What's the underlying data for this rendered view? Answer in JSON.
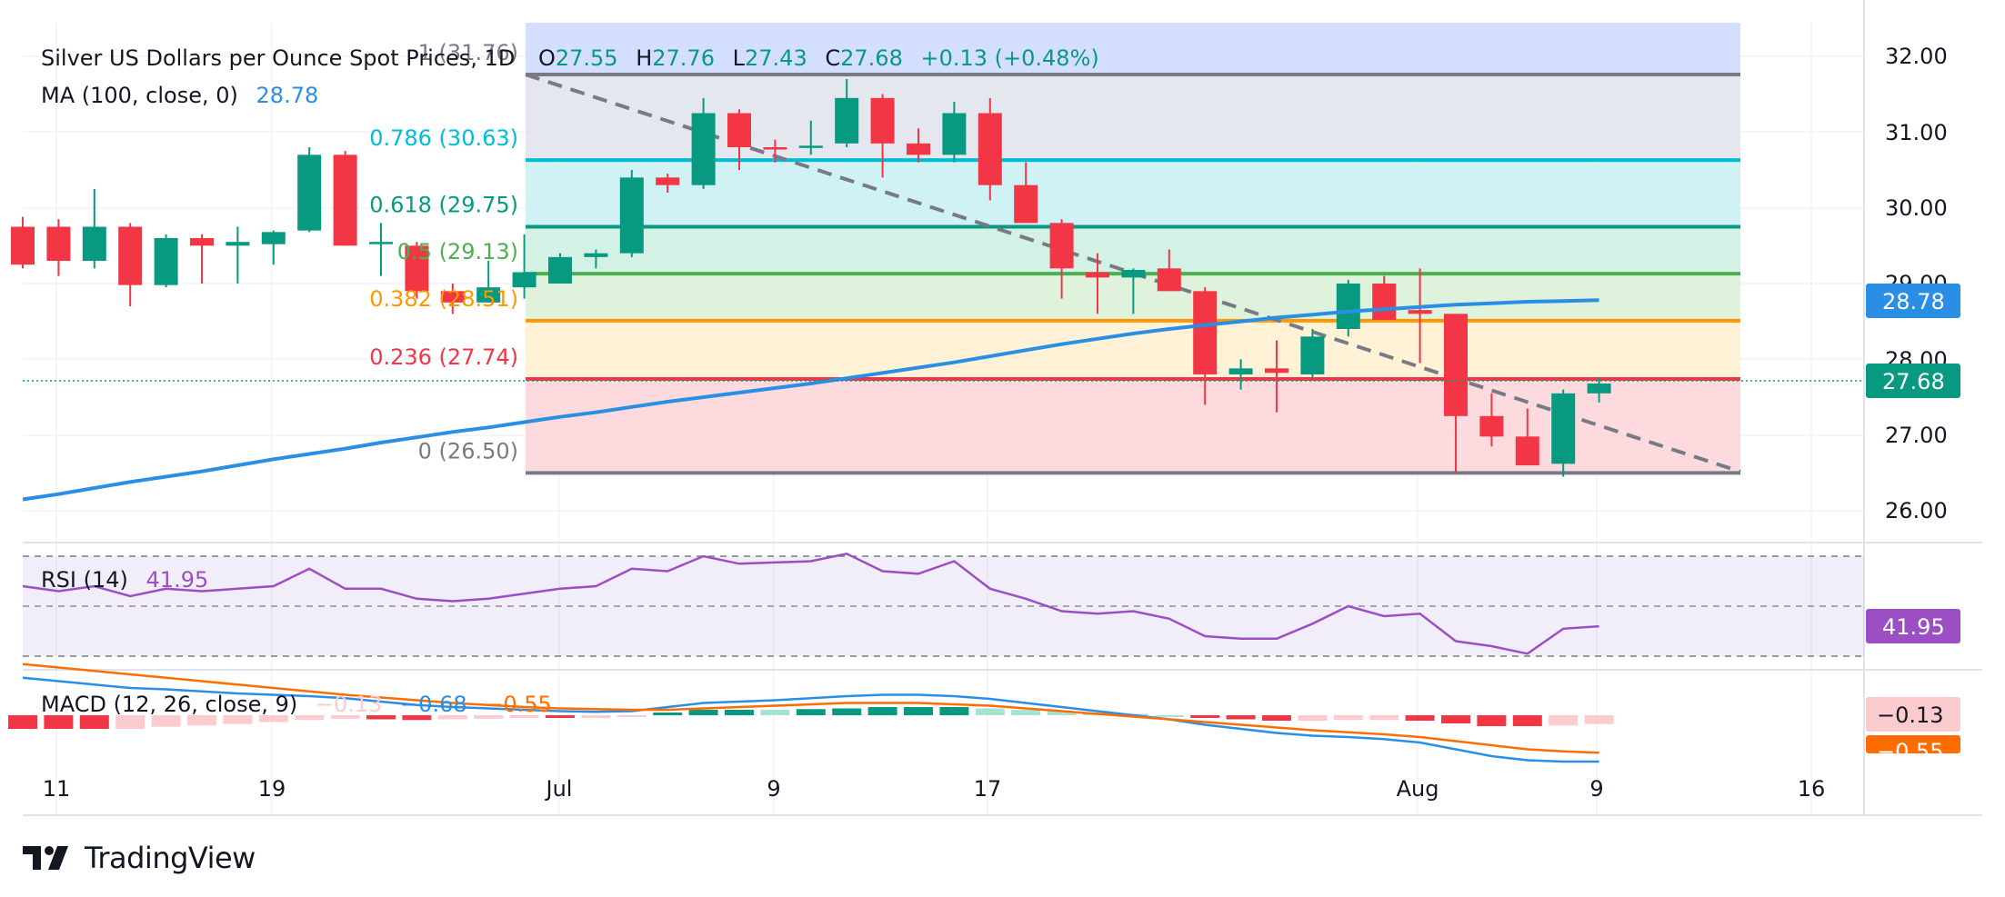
{
  "header": {
    "symbol": "Silver US Dollars per Ounce Spot Prices",
    "timeframe": "1D",
    "open_label": "O",
    "open": "27.55",
    "high_label": "H",
    "high": "27.76",
    "low_label": "L",
    "low": "27.43",
    "close_label": "C",
    "close": "27.68",
    "change": "+0.13 (+0.48%)",
    "ma_label": "MA (100, close, 0)",
    "ma_value": "28.78"
  },
  "fib_labels": [
    {
      "level": 1,
      "text": "1 (31.76)",
      "price": 31.76,
      "color": "#787b86"
    },
    {
      "level": 0.786,
      "text": "0.786 (30.63)",
      "price": 30.63,
      "color": "#00bcd4"
    },
    {
      "level": 0.618,
      "text": "0.618 (29.75)",
      "price": 29.75,
      "color": "#089981"
    },
    {
      "level": 0.5,
      "text": "0.5 (29.13)",
      "price": 29.13,
      "color": "#4caf50"
    },
    {
      "level": 0.382,
      "text": "0.382 (28.51)",
      "price": 28.51,
      "color": "#ff9800"
    },
    {
      "level": 0.236,
      "text": "0.236 (27.74)",
      "price": 27.74,
      "color": "#f23645"
    },
    {
      "level": 0,
      "text": "0 (26.50)",
      "price": 26.5,
      "color": "#787b86"
    }
  ],
  "price_axis": {
    "ticks": [
      "32.00",
      "31.00",
      "30.00",
      "29.00",
      "28.00",
      "27.00",
      "26.00"
    ],
    "ma_badge": "28.78",
    "price_badge": "27.68"
  },
  "time_axis": [
    "11",
    "19",
    "Jul",
    "9",
    "17",
    "Aug",
    "9",
    "16"
  ],
  "rsi": {
    "label": "RSI (14)",
    "value": "41.95",
    "badge": "41.95"
  },
  "macd": {
    "label": "MACD (12, 26, close, 9)",
    "hist_value": "−0.13",
    "macd_value": "−0.68",
    "signal_value": "−0.55",
    "hist_badge": "−0.13",
    "signal_badge": "−0.55"
  },
  "branding": {
    "name": "TradingView",
    "logo_icon": "tradingview-logo-icon"
  },
  "colors": {
    "up": "#089981",
    "down": "#f23645",
    "ma": "#2a8fe4",
    "rsi": "#9c4fc2",
    "macd": "#2a8fe4",
    "signal": "#ff6d00"
  },
  "chart_data": {
    "type": "candlestick",
    "title": "Silver US Dollars per Ounce Spot Prices, 1D",
    "ylim": [
      25.6,
      32.35
    ],
    "candles": [
      {
        "o": 29.75,
        "h": 29.88,
        "l": 29.2,
        "c": 29.25
      },
      {
        "o": 29.75,
        "h": 29.85,
        "l": 29.1,
        "c": 29.3
      },
      {
        "o": 29.3,
        "h": 30.25,
        "l": 29.2,
        "c": 29.75
      },
      {
        "o": 29.75,
        "h": 29.8,
        "l": 28.7,
        "c": 28.98
      },
      {
        "o": 28.98,
        "h": 29.65,
        "l": 28.95,
        "c": 29.6
      },
      {
        "o": 29.6,
        "h": 29.65,
        "l": 29.0,
        "c": 29.5
      },
      {
        "o": 29.5,
        "h": 29.75,
        "l": 29.0,
        "c": 29.55
      },
      {
        "o": 29.52,
        "h": 29.7,
        "l": 29.25,
        "c": 29.68
      },
      {
        "o": 29.7,
        "h": 30.8,
        "l": 29.68,
        "c": 30.7
      },
      {
        "o": 30.7,
        "h": 30.75,
        "l": 29.5,
        "c": 29.5
      },
      {
        "o": 29.55,
        "h": 29.8,
        "l": 29.1,
        "c": 29.55
      },
      {
        "o": 29.5,
        "h": 29.55,
        "l": 28.8,
        "c": 28.9
      },
      {
        "o": 28.9,
        "h": 29.0,
        "l": 28.6,
        "c": 28.75
      },
      {
        "o": 28.75,
        "h": 29.3,
        "l": 28.75,
        "c": 28.95
      },
      {
        "o": 28.95,
        "h": 29.65,
        "l": 28.8,
        "c": 29.15
      },
      {
        "o": 29.0,
        "h": 29.4,
        "l": 29.0,
        "c": 29.35
      },
      {
        "o": 29.35,
        "h": 29.45,
        "l": 29.2,
        "c": 29.4
      },
      {
        "o": 29.4,
        "h": 30.5,
        "l": 29.35,
        "c": 30.4
      },
      {
        "o": 30.4,
        "h": 30.45,
        "l": 30.2,
        "c": 30.3
      },
      {
        "o": 30.3,
        "h": 31.45,
        "l": 30.25,
        "c": 31.25
      },
      {
        "o": 31.25,
        "h": 31.3,
        "l": 30.5,
        "c": 30.8
      },
      {
        "o": 30.8,
        "h": 30.9,
        "l": 30.6,
        "c": 30.78
      },
      {
        "o": 30.8,
        "h": 31.15,
        "l": 30.7,
        "c": 30.82
      },
      {
        "o": 30.85,
        "h": 31.7,
        "l": 30.8,
        "c": 31.45
      },
      {
        "o": 31.45,
        "h": 31.5,
        "l": 30.4,
        "c": 30.85
      },
      {
        "o": 30.85,
        "h": 31.05,
        "l": 30.6,
        "c": 30.7
      },
      {
        "o": 30.7,
        "h": 31.4,
        "l": 30.6,
        "c": 31.25
      },
      {
        "o": 31.25,
        "h": 31.45,
        "l": 30.1,
        "c": 30.3
      },
      {
        "o": 30.3,
        "h": 30.6,
        "l": 29.8,
        "c": 29.8
      },
      {
        "o": 29.8,
        "h": 29.85,
        "l": 28.8,
        "c": 29.2
      },
      {
        "o": 29.15,
        "h": 29.4,
        "l": 28.6,
        "c": 29.08
      },
      {
        "o": 29.08,
        "h": 29.2,
        "l": 28.6,
        "c": 29.18
      },
      {
        "o": 29.2,
        "h": 29.45,
        "l": 28.9,
        "c": 28.9
      },
      {
        "o": 28.9,
        "h": 28.95,
        "l": 27.4,
        "c": 27.8
      },
      {
        "o": 27.8,
        "h": 28.0,
        "l": 27.6,
        "c": 27.88
      },
      {
        "o": 27.88,
        "h": 28.25,
        "l": 27.3,
        "c": 27.82
      },
      {
        "o": 27.8,
        "h": 28.4,
        "l": 27.75,
        "c": 28.3
      },
      {
        "o": 28.4,
        "h": 29.05,
        "l": 28.3,
        "c": 29.0
      },
      {
        "o": 29.0,
        "h": 29.1,
        "l": 28.55,
        "c": 28.52
      },
      {
        "o": 28.65,
        "h": 29.2,
        "l": 27.95,
        "c": 28.6
      },
      {
        "o": 28.6,
        "h": 28.6,
        "l": 26.5,
        "c": 27.25
      },
      {
        "o": 27.25,
        "h": 27.55,
        "l": 26.85,
        "c": 26.98
      },
      {
        "o": 26.98,
        "h": 27.35,
        "l": 26.6,
        "c": 26.6
      },
      {
        "o": 26.62,
        "h": 27.6,
        "l": 26.45,
        "c": 27.55
      },
      {
        "o": 27.55,
        "h": 27.76,
        "l": 27.43,
        "c": 27.68
      }
    ],
    "ma100": [
      26.15,
      26.22,
      26.3,
      26.38,
      26.45,
      26.52,
      26.6,
      26.68,
      26.75,
      26.82,
      26.9,
      26.97,
      27.04,
      27.1,
      27.17,
      27.24,
      27.3,
      27.37,
      27.44,
      27.5,
      27.56,
      27.62,
      27.68,
      27.75,
      27.82,
      27.89,
      27.96,
      28.04,
      28.12,
      28.2,
      28.27,
      28.34,
      28.4,
      28.45,
      28.5,
      28.55,
      28.59,
      28.63,
      28.66,
      28.69,
      28.72,
      28.74,
      28.76,
      28.77,
      28.78
    ],
    "rsi": [
      58,
      56,
      58,
      54,
      57,
      56,
      57,
      58,
      65,
      57,
      57,
      53,
      52,
      53,
      55,
      57,
      58,
      65,
      64,
      70,
      67,
      67.5,
      68,
      71,
      64,
      63,
      68,
      57,
      53,
      48,
      47,
      48,
      45,
      38,
      37,
      37,
      43,
      50,
      46,
      47,
      36,
      34,
      31,
      41,
      41.95
    ],
    "rsi_ylim": [
      20,
      80
    ],
    "macd_line": [
      0.55,
      0.5,
      0.45,
      0.4,
      0.38,
      0.35,
      0.32,
      0.3,
      0.28,
      0.25,
      0.2,
      0.15,
      0.12,
      0.1,
      0.08,
      0.06,
      0.05,
      0.06,
      0.12,
      0.18,
      0.2,
      0.22,
      0.25,
      0.28,
      0.3,
      0.3,
      0.28,
      0.24,
      0.18,
      0.12,
      0.06,
      0.0,
      -0.06,
      -0.14,
      -0.2,
      -0.26,
      -0.3,
      -0.32,
      -0.35,
      -0.4,
      -0.5,
      -0.6,
      -0.66,
      -0.68,
      -0.68
    ],
    "signal_line": [
      0.75,
      0.7,
      0.65,
      0.6,
      0.55,
      0.5,
      0.45,
      0.4,
      0.35,
      0.3,
      0.26,
      0.22,
      0.18,
      0.15,
      0.12,
      0.1,
      0.09,
      0.08,
      0.08,
      0.1,
      0.12,
      0.14,
      0.16,
      0.18,
      0.18,
      0.18,
      0.16,
      0.14,
      0.1,
      0.06,
      0.02,
      -0.02,
      -0.06,
      -0.1,
      -0.14,
      -0.18,
      -0.22,
      -0.25,
      -0.28,
      -0.32,
      -0.38,
      -0.44,
      -0.5,
      -0.53,
      -0.55
    ],
    "macd_ylim": [
      -0.8,
      0.8
    ]
  }
}
